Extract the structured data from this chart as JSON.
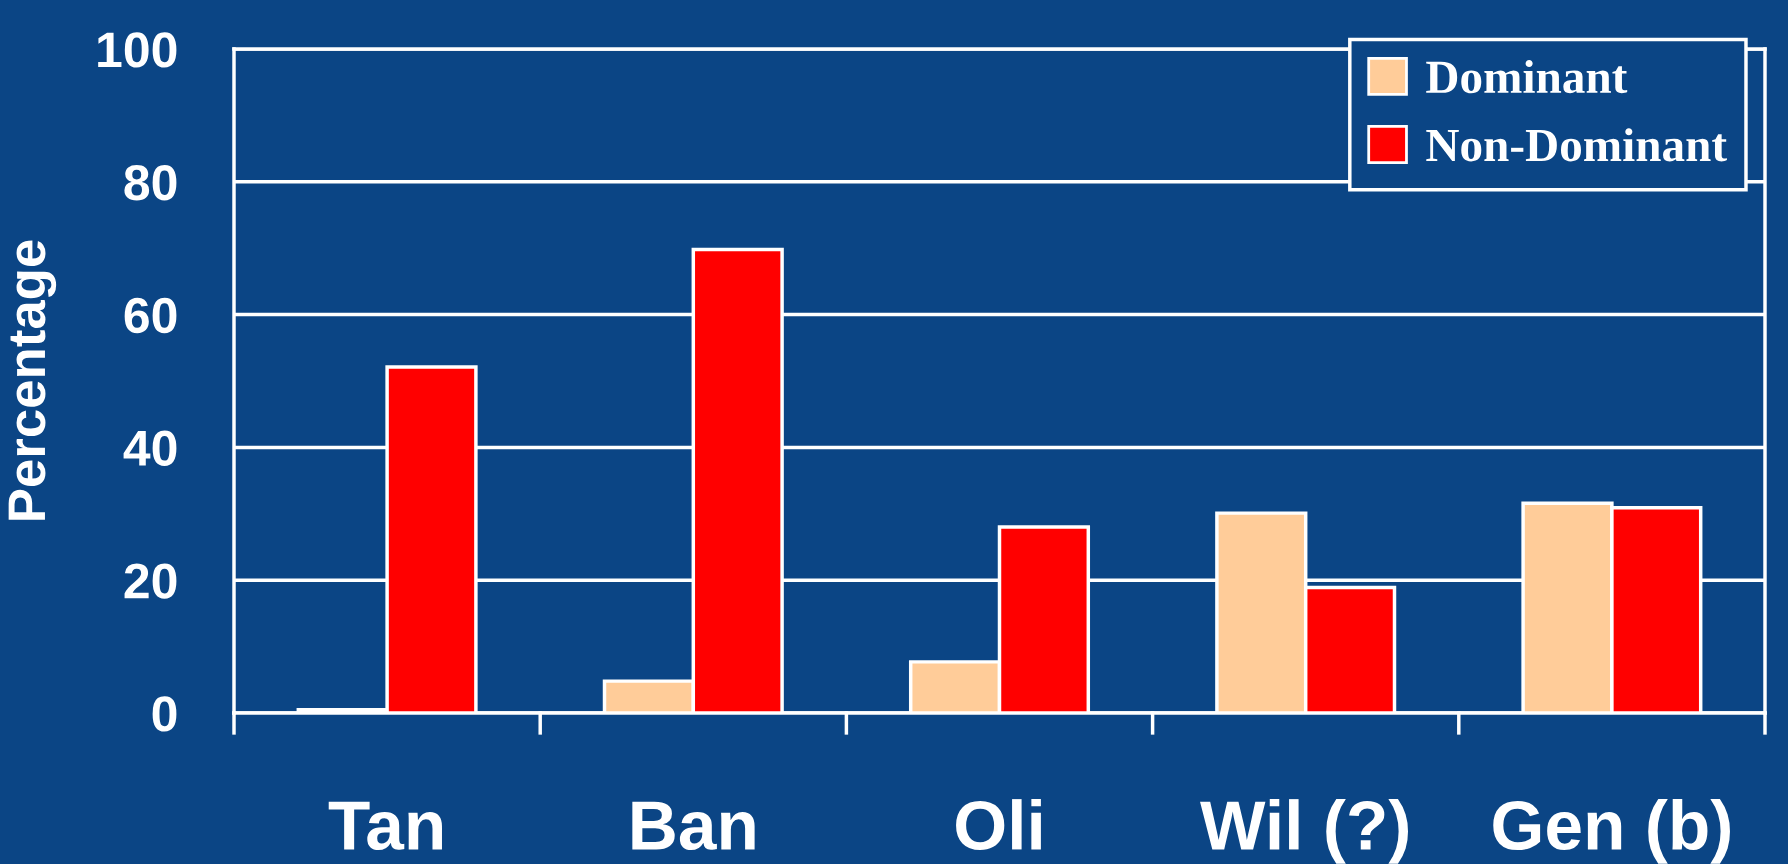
{
  "chart_data": {
    "type": "bar",
    "ylabel": "Percentage",
    "categories": [
      "Tan",
      "Ban",
      "Oli",
      "Wil (?)",
      "Gen (b)"
    ],
    "series": [
      {
        "name": "Dominant",
        "color": "#ffcc99",
        "values": [
          0.5,
          4.8,
          7.7,
          30.1,
          31.6
        ]
      },
      {
        "name": "Non-Dominant",
        "color": "#ff0000",
        "values": [
          52.1,
          69.8,
          28.0,
          18.9,
          30.9
        ]
      }
    ],
    "ylim": [
      0,
      100
    ],
    "yticks": [
      0,
      20,
      40,
      60,
      80,
      100
    ],
    "grid": "y",
    "legend": "top right"
  }
}
